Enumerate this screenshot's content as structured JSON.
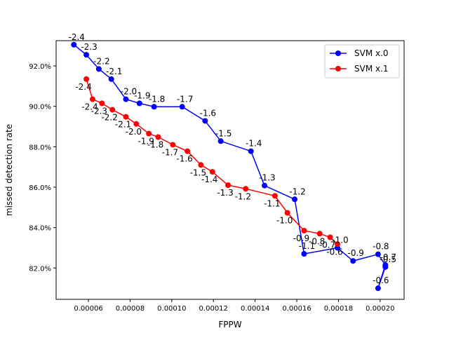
{
  "chart_data": {
    "type": "line",
    "title": "",
    "xlabel": "FPPW",
    "ylabel": "missed detection rate",
    "xlim": [
      4.45e-05,
      0.0002115
    ],
    "ylim": [
      0.8045,
      0.9325
    ],
    "x_ticks": [
      {
        "value": 6e-05,
        "label": "0.00006"
      },
      {
        "value": 8e-05,
        "label": "0.00008"
      },
      {
        "value": 0.0001,
        "label": "0.00010"
      },
      {
        "value": 0.00012,
        "label": "0.00012"
      },
      {
        "value": 0.00014,
        "label": "0.00014"
      },
      {
        "value": 0.00016,
        "label": "0.00016"
      },
      {
        "value": 0.00018,
        "label": "0.00018"
      },
      {
        "value": 0.0002,
        "label": "0.00020"
      }
    ],
    "y_ticks": [
      {
        "value": 0.82,
        "label": "82.0%"
      },
      {
        "value": 0.84,
        "label": "84.0%"
      },
      {
        "value": 0.86,
        "label": "86.0%"
      },
      {
        "value": 0.88,
        "label": "88.0%"
      },
      {
        "value": 0.9,
        "label": "90.0%"
      },
      {
        "value": 0.92,
        "label": "92.0%"
      }
    ],
    "grid": false,
    "legend_position": "top-right",
    "series": [
      {
        "name": "SVM x.0",
        "color": "#0000ff",
        "points": [
          {
            "x": 5.3e-05,
            "y": 0.9305,
            "label": "-2.4"
          },
          {
            "x": 5.9e-05,
            "y": 0.9255,
            "label": "-2.3"
          },
          {
            "x": 6.5e-05,
            "y": 0.9185,
            "label": "-2.2"
          },
          {
            "x": 7.1e-05,
            "y": 0.9135,
            "label": "-2.1"
          },
          {
            "x": 7.8e-05,
            "y": 0.9035,
            "label": "-2.0"
          },
          {
            "x": 8.45e-05,
            "y": 0.9015,
            "label": "-1.9"
          },
          {
            "x": 9.15e-05,
            "y": 0.8998,
            "label": "-1.8"
          },
          {
            "x": 0.000105,
            "y": 0.8998,
            "label": "-1.7"
          },
          {
            "x": 0.000116,
            "y": 0.8928,
            "label": "-1.6"
          },
          {
            "x": 0.0001235,
            "y": 0.8828,
            "label": "-1.5"
          },
          {
            "x": 0.000138,
            "y": 0.8778,
            "label": "-1.4"
          },
          {
            "x": 0.0001445,
            "y": 0.8608,
            "label": "-1.3"
          },
          {
            "x": 0.000159,
            "y": 0.854,
            "label": "-1.2"
          },
          {
            "x": 0.0001635,
            "y": 0.827,
            "label": "-1.1"
          },
          {
            "x": 0.0001795,
            "y": 0.83,
            "label": "-1.0"
          },
          {
            "x": 0.000187,
            "y": 0.8235,
            "label": "-0.9"
          },
          {
            "x": 0.000199,
            "y": 0.8268,
            "label": "-0.8"
          },
          {
            "x": 0.0002025,
            "y": 0.8215,
            "label": "-0.7"
          },
          {
            "x": 0.000199,
            "y": 0.81,
            "label": "-0.6"
          },
          {
            "x": 0.0002025,
            "y": 0.8205,
            "label": "-0.5"
          }
        ]
      },
      {
        "name": "SVM x.1",
        "color": "#ff0000",
        "points": [
          {
            "x": 5.9e-05,
            "y": 0.9135,
            "label": "-2.4"
          },
          {
            "x": 6.2e-05,
            "y": 0.9035,
            "label": "-2.4"
          },
          {
            "x": 6.65e-05,
            "y": 0.9015,
            "label": "-2.3"
          },
          {
            "x": 7.15e-05,
            "y": 0.8983,
            "label": "-2.2"
          },
          {
            "x": 7.8e-05,
            "y": 0.8948,
            "label": "-2.1"
          },
          {
            "x": 8.3e-05,
            "y": 0.8913,
            "label": "-2.0"
          },
          {
            "x": 8.9e-05,
            "y": 0.8865,
            "label": "-1.9"
          },
          {
            "x": 9.35e-05,
            "y": 0.8848,
            "label": "-1.8"
          },
          {
            "x": 0.0001005,
            "y": 0.881,
            "label": "-1.7"
          },
          {
            "x": 0.0001075,
            "y": 0.8778,
            "label": "-1.6"
          },
          {
            "x": 0.000114,
            "y": 0.871,
            "label": "-1.5"
          },
          {
            "x": 0.0001195,
            "y": 0.8676,
            "label": "-1.4"
          },
          {
            "x": 0.000127,
            "y": 0.861,
            "label": "-1.3"
          },
          {
            "x": 0.0001355,
            "y": 0.8592,
            "label": "-1.2"
          },
          {
            "x": 0.0001495,
            "y": 0.8557,
            "label": "-1.1"
          },
          {
            "x": 0.0001555,
            "y": 0.8473,
            "label": "-1.0"
          },
          {
            "x": 0.0001635,
            "y": 0.8385,
            "label": "-0.9"
          },
          {
            "x": 0.000171,
            "y": 0.837,
            "label": "-0.8"
          },
          {
            "x": 0.000176,
            "y": 0.8352,
            "label": "-0.7"
          },
          {
            "x": 0.0001795,
            "y": 0.8318,
            "label": "-0.6"
          }
        ]
      }
    ]
  }
}
